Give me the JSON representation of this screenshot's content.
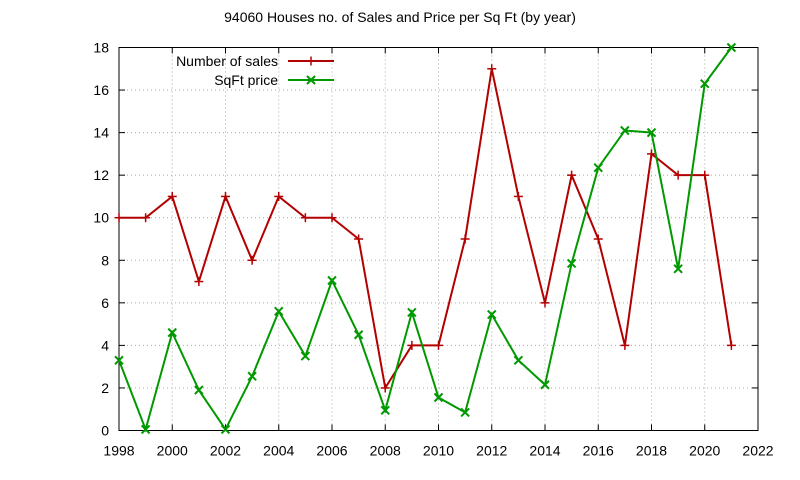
{
  "chart_data": {
    "type": "line",
    "title": "94060 Houses no. of Sales and Price per Sq Ft (by year)",
    "xlabel": "",
    "ylabel": "",
    "xlim": [
      1998,
      2022
    ],
    "ylim": [
      0,
      18
    ],
    "x_ticks": [
      1998,
      2000,
      2002,
      2004,
      2006,
      2008,
      2010,
      2012,
      2014,
      2016,
      2018,
      2020,
      2022
    ],
    "y_ticks": [
      0,
      2,
      4,
      6,
      8,
      10,
      12,
      14,
      16,
      18
    ],
    "grid": true,
    "legend_position": "top-left",
    "x": [
      1998,
      1999,
      2000,
      2001,
      2002,
      2003,
      2004,
      2005,
      2006,
      2007,
      2008,
      2009,
      2010,
      2011,
      2012,
      2013,
      2014,
      2015,
      2016,
      2017,
      2018,
      2019,
      2020,
      2021
    ],
    "series": [
      {
        "name": "Number of sales",
        "color": "#b30000",
        "marker": "plus",
        "values": [
          10,
          10,
          11,
          7,
          11,
          8,
          11,
          10,
          10,
          9,
          2,
          4,
          4,
          9,
          17,
          11,
          6,
          12,
          9,
          4,
          13,
          12,
          12,
          4
        ]
      },
      {
        "name": "SqFt price",
        "color": "#009900",
        "marker": "x",
        "values": [
          3.3,
          0.05,
          4.6,
          1.9,
          0.05,
          2.55,
          5.6,
          3.5,
          7.05,
          4.5,
          0.95,
          5.55,
          1.55,
          0.85,
          5.45,
          3.3,
          2.15,
          7.85,
          12.35,
          14.1,
          14.0,
          7.6,
          16.3,
          18.0
        ]
      }
    ]
  }
}
